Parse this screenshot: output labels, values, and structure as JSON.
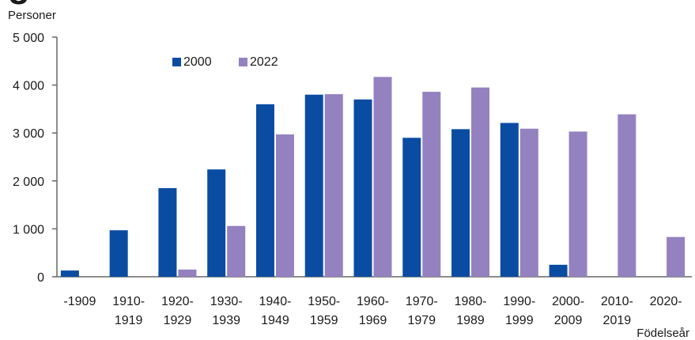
{
  "title_fragment": "g",
  "chart_data": {
    "type": "bar",
    "ylabel": "Personer",
    "xlabel": "Födelseår",
    "ylim": [
      0,
      5000
    ],
    "yticks": [
      0,
      1000,
      2000,
      3000,
      4000,
      5000
    ],
    "ytick_labels": [
      "0",
      "1 000",
      "2 000",
      "3 000",
      "4 000",
      "5 000"
    ],
    "categories": [
      [
        "-1909",
        ""
      ],
      [
        "1910-",
        "1919"
      ],
      [
        "1920-",
        "1929"
      ],
      [
        "1930-",
        "1939"
      ],
      [
        "1940-",
        "1949"
      ],
      [
        "1950-",
        "1959"
      ],
      [
        "1960-",
        "1969"
      ],
      [
        "1970-",
        "1979"
      ],
      [
        "1980-",
        "1989"
      ],
      [
        "1990-",
        "1999"
      ],
      [
        "2000-",
        "2009"
      ],
      [
        "2010-",
        "2019"
      ],
      [
        "2020-",
        ""
      ]
    ],
    "series": [
      {
        "name": "2000",
        "color": "#0a4ca2",
        "values": [
          130,
          970,
          1850,
          2240,
          3600,
          3800,
          3700,
          2900,
          3080,
          3210,
          250,
          0,
          0
        ]
      },
      {
        "name": "2022",
        "color": "#9481bf",
        "values": [
          0,
          0,
          150,
          1060,
          2970,
          3810,
          4170,
          3860,
          3950,
          3090,
          3030,
          3390,
          830
        ]
      }
    ],
    "legend_position": "top-left",
    "grid": false
  }
}
